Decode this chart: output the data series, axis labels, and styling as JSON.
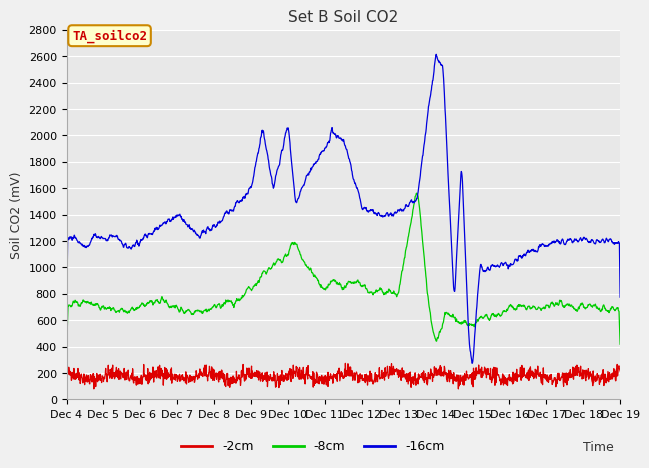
{
  "title": "Set B Soil CO2",
  "ylabel": "Soil CO2 (mV)",
  "xlabel": "Time",
  "xlim_days": [
    4,
    19
  ],
  "ylim": [
    0,
    2800
  ],
  "yticks": [
    0,
    200,
    400,
    600,
    800,
    1000,
    1200,
    1400,
    1600,
    1800,
    2000,
    2200,
    2400,
    2600,
    2800
  ],
  "xtick_labels": [
    "Dec 4",
    "Dec 5",
    "Dec 6",
    "Dec 7",
    "Dec 8",
    "Dec 9",
    "Dec 10",
    "Dec 11",
    "Dec 12",
    "Dec 13",
    "Dec 14",
    "Dec 15",
    "Dec 16",
    "Dec 17",
    "Dec 18",
    "Dec 19"
  ],
  "legend_labels": [
    "-2cm",
    "-8cm",
    "-16cm"
  ],
  "line_colors": [
    "#dd0000",
    "#00cc00",
    "#0000dd"
  ],
  "annotation_text": "TA_soilco2",
  "annotation_color": "#cc0000",
  "annotation_border": "#cc8800",
  "annotation_bg": "#ffffcc",
  "plot_bg": "#e8e8e8",
  "fig_bg": "#f0f0f0",
  "grid_color": "#ffffff",
  "title_fontsize": 11,
  "tick_fontsize": 8,
  "label_fontsize": 9
}
